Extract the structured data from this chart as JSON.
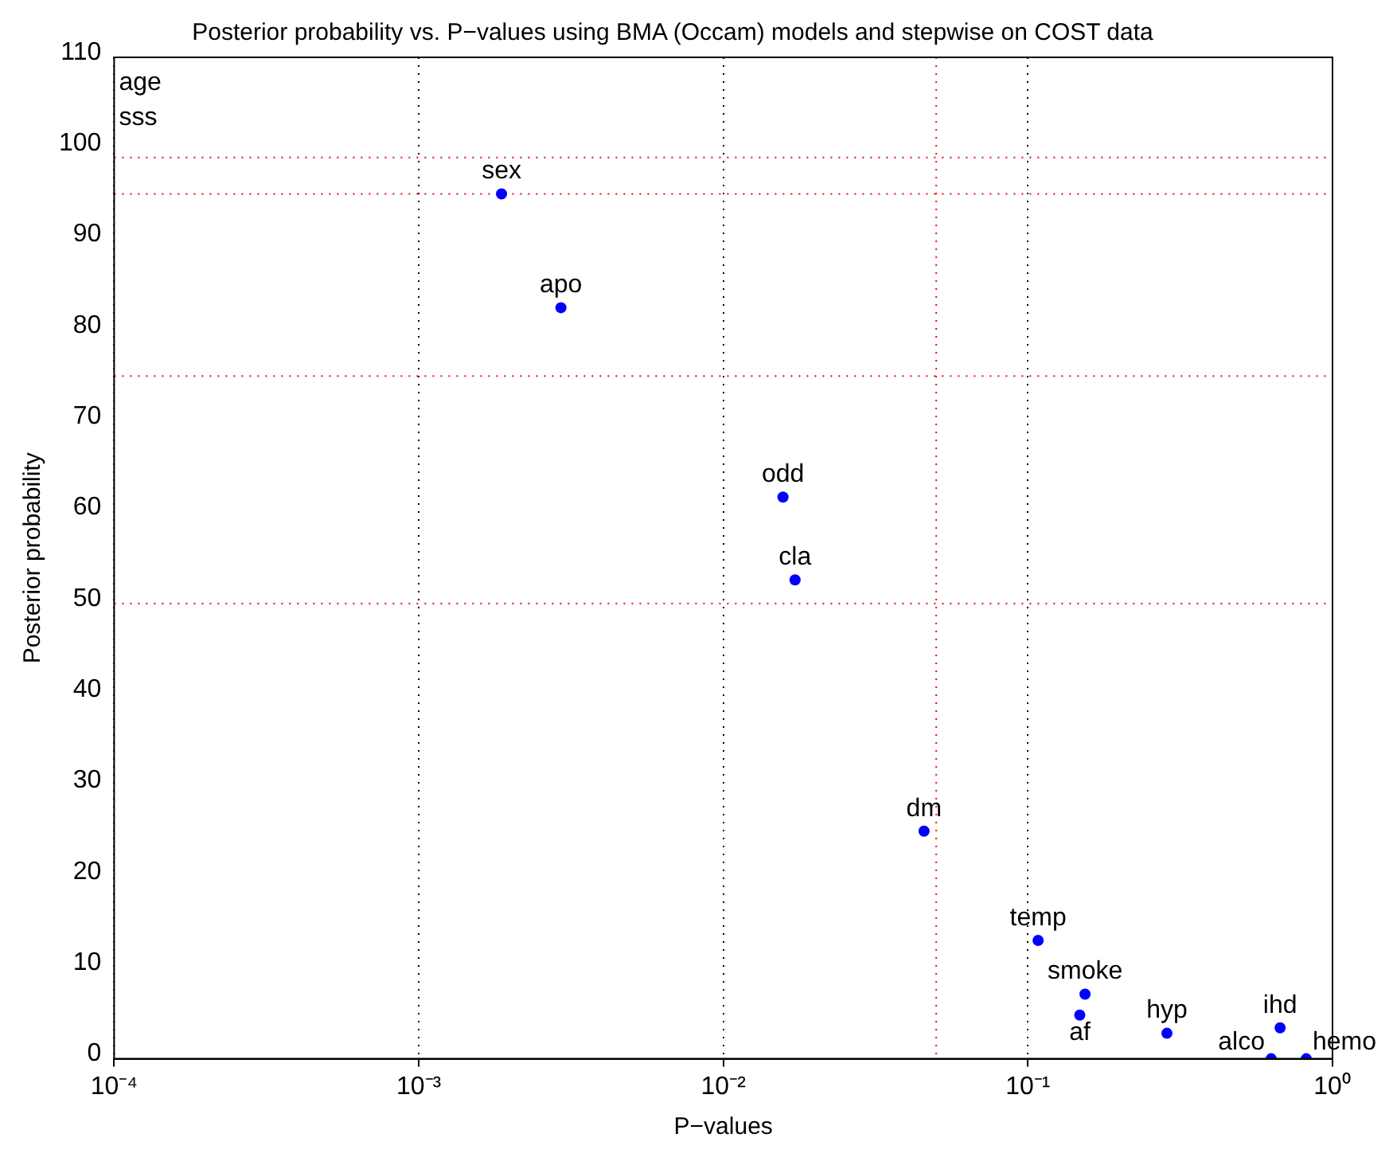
{
  "chart_data": {
    "type": "scatter",
    "title": "Posterior probability vs. P−values using BMA (Occam) models and stepwise on COST data",
    "xlabel": "P−values",
    "ylabel": "Posterior probability",
    "log": "x",
    "x": [
      0.00187,
      0.00293,
      0.0157,
      0.0172,
      0.0456,
      0.108,
      0.154,
      0.148,
      0.286,
      0.673,
      0.629,
      0.82
    ],
    "values": [
      95,
      82.5,
      61.7,
      52.6,
      25,
      13,
      7.1,
      4.8,
      2.8,
      3.4,
      0,
      0
    ],
    "color": "#0000ff",
    "marker": "circle",
    "xlim": [
      0.0001,
      1
    ],
    "xticks": [
      {
        "value": 0.0001,
        "label": "10⁻⁴"
      },
      {
        "value": 0.001,
        "label": "10⁻³"
      },
      {
        "value": 0.01,
        "label": "10⁻²"
      },
      {
        "value": 0.1,
        "label": "10⁻¹"
      },
      {
        "value": 1,
        "label": "10⁰"
      }
    ],
    "ylim": [
      0,
      110
    ],
    "yticks": [
      0,
      10,
      20,
      30,
      40,
      50,
      60,
      70,
      80,
      90,
      100,
      110
    ],
    "grid": "x",
    "ref_lines": [
      {
        "axis": "y",
        "value": 99,
        "color": "#ff0000",
        "line_style": "dotted"
      },
      {
        "axis": "y",
        "value": 95,
        "color": "#ff0000",
        "line_style": "dotted"
      },
      {
        "axis": "y",
        "value": 75,
        "color": "#ff0000",
        "line_style": "dotted"
      },
      {
        "axis": "y",
        "value": 50,
        "color": "#ff0000",
        "line_style": "dotted"
      },
      {
        "axis": "x",
        "value": 0.05,
        "color": "#ff0000",
        "line_style": "dotted"
      }
    ],
    "annotations": [
      "age",
      "sss",
      {
        "text": "sex",
        "x": 0.00187,
        "y": 95
      },
      {
        "text": "apo",
        "x": 0.00293,
        "y": 82.5
      },
      {
        "text": "odd",
        "x": 0.0157,
        "y": 61.7
      },
      {
        "text": "cla",
        "x": 0.0172,
        "y": 52.6
      },
      {
        "text": "dm",
        "x": 0.0456,
        "y": 25
      },
      {
        "text": "temp",
        "x": 0.108,
        "y": 13
      },
      {
        "text": "smoke",
        "x": 0.154,
        "y": 7.1
      },
      {
        "text": "af",
        "x": 0.148,
        "y": 4.8
      },
      {
        "text": "hyp",
        "x": 0.286,
        "y": 2.8
      },
      {
        "text": "ihd",
        "x": 0.673,
        "y": 3.4
      },
      {
        "text": "alco",
        "x": 0.629,
        "y": 0
      },
      {
        "text": "hemo",
        "x": 0.82,
        "y": 0
      }
    ]
  }
}
